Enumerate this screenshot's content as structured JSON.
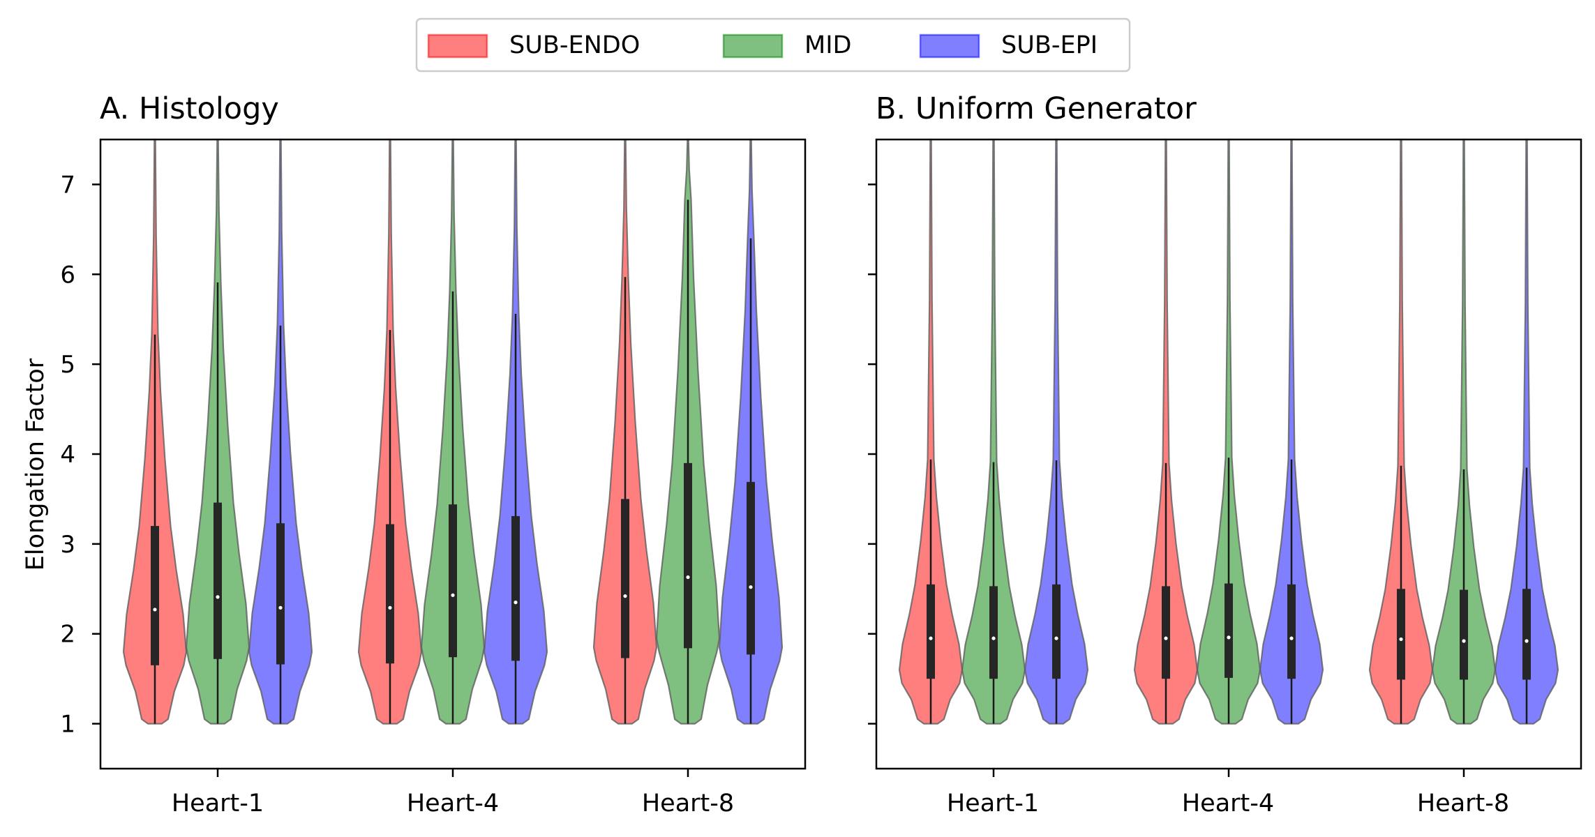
{
  "legend": {
    "entries": [
      {
        "label": "SUB-ENDO",
        "color": "#ff0000"
      },
      {
        "label": "MID",
        "color": "#008000"
      },
      {
        "label": "SUB-EPI",
        "color": "#0000ff"
      }
    ],
    "placement": "top-center"
  },
  "shared": {
    "ylabel": "Elongation Factor",
    "ylim": [
      0.5,
      7.5
    ],
    "yticks": [
      "1",
      "2",
      "3",
      "4",
      "5",
      "6",
      "7"
    ],
    "categories": [
      "Heart-1",
      "Heart-4",
      "Heart-8"
    ]
  },
  "chart_data": [
    {
      "type": "violin",
      "title": "A. Histology",
      "xlabel": "",
      "ylabel": "Elongation Factor",
      "ylim": [
        0.5,
        7.5
      ],
      "categories": [
        "Heart-1",
        "Heart-4",
        "Heart-8"
      ],
      "grid": false,
      "series": [
        {
          "name": "SUB-ENDO",
          "color": "#ff0000",
          "stats": [
            {
              "min": 1.0,
              "q1": 1.65,
              "median": 2.27,
              "q3": 3.2,
              "whisker_high": 5.33,
              "max": 7.5,
              "widest_at": 1.8
            },
            {
              "min": 1.0,
              "q1": 1.67,
              "median": 2.29,
              "q3": 3.22,
              "whisker_high": 5.38,
              "max": 7.5,
              "widest_at": 1.8
            },
            {
              "min": 1.0,
              "q1": 1.73,
              "median": 2.42,
              "q3": 3.5,
              "whisker_high": 5.97,
              "max": 7.5,
              "widest_at": 1.85
            }
          ]
        },
        {
          "name": "MID",
          "color": "#008000",
          "stats": [
            {
              "min": 1.0,
              "q1": 1.72,
              "median": 2.41,
              "q3": 3.46,
              "whisker_high": 5.91,
              "max": 7.5,
              "widest_at": 1.85
            },
            {
              "min": 1.0,
              "q1": 1.74,
              "median": 2.43,
              "q3": 3.44,
              "whisker_high": 5.81,
              "max": 7.5,
              "widest_at": 1.85
            },
            {
              "min": 1.0,
              "q1": 1.84,
              "median": 2.63,
              "q3": 3.9,
              "whisker_high": 6.83,
              "max": 7.5,
              "widest_at": 1.95
            }
          ]
        },
        {
          "name": "SUB-EPI",
          "color": "#0000ff",
          "stats": [
            {
              "min": 1.0,
              "q1": 1.66,
              "median": 2.29,
              "q3": 3.23,
              "whisker_high": 5.43,
              "max": 7.5,
              "widest_at": 1.8
            },
            {
              "min": 1.0,
              "q1": 1.7,
              "median": 2.35,
              "q3": 3.31,
              "whisker_high": 5.56,
              "max": 7.5,
              "widest_at": 1.8
            },
            {
              "min": 1.0,
              "q1": 1.77,
              "median": 2.52,
              "q3": 3.69,
              "whisker_high": 6.4,
              "max": 7.5,
              "widest_at": 1.85
            }
          ]
        }
      ]
    },
    {
      "type": "violin",
      "title": "B. Uniform Generator",
      "xlabel": "",
      "ylabel": "",
      "ylim": [
        0.5,
        7.5
      ],
      "categories": [
        "Heart-1",
        "Heart-4",
        "Heart-8"
      ],
      "grid": false,
      "series": [
        {
          "name": "SUB-ENDO",
          "color": "#ff0000",
          "stats": [
            {
              "min": 1.0,
              "q1": 1.5,
              "median": 1.95,
              "q3": 2.55,
              "whisker_high": 3.94,
              "max": 7.5,
              "widest_at": 1.6
            },
            {
              "min": 1.0,
              "q1": 1.5,
              "median": 1.95,
              "q3": 2.53,
              "whisker_high": 3.9,
              "max": 7.5,
              "widest_at": 1.6
            },
            {
              "min": 1.0,
              "q1": 1.49,
              "median": 1.94,
              "q3": 2.5,
              "whisker_high": 3.87,
              "max": 7.5,
              "widest_at": 1.6
            }
          ]
        },
        {
          "name": "MID",
          "color": "#008000",
          "stats": [
            {
              "min": 1.0,
              "q1": 1.5,
              "median": 1.95,
              "q3": 2.53,
              "whisker_high": 3.91,
              "max": 7.5,
              "widest_at": 1.6
            },
            {
              "min": 1.0,
              "q1": 1.51,
              "median": 1.96,
              "q3": 2.56,
              "whisker_high": 3.96,
              "max": 7.5,
              "widest_at": 1.6
            },
            {
              "min": 1.0,
              "q1": 1.49,
              "median": 1.92,
              "q3": 2.49,
              "whisker_high": 3.83,
              "max": 7.5,
              "widest_at": 1.6
            }
          ]
        },
        {
          "name": "SUB-EPI",
          "color": "#0000ff",
          "stats": [
            {
              "min": 1.0,
              "q1": 1.5,
              "median": 1.95,
              "q3": 2.55,
              "whisker_high": 3.93,
              "max": 7.5,
              "widest_at": 1.6
            },
            {
              "min": 1.0,
              "q1": 1.5,
              "median": 1.95,
              "q3": 2.55,
              "whisker_high": 3.94,
              "max": 7.5,
              "widest_at": 1.6
            },
            {
              "min": 1.0,
              "q1": 1.49,
              "median": 1.92,
              "q3": 2.5,
              "whisker_high": 3.85,
              "max": 7.5,
              "widest_at": 1.6
            }
          ]
        }
      ]
    }
  ]
}
